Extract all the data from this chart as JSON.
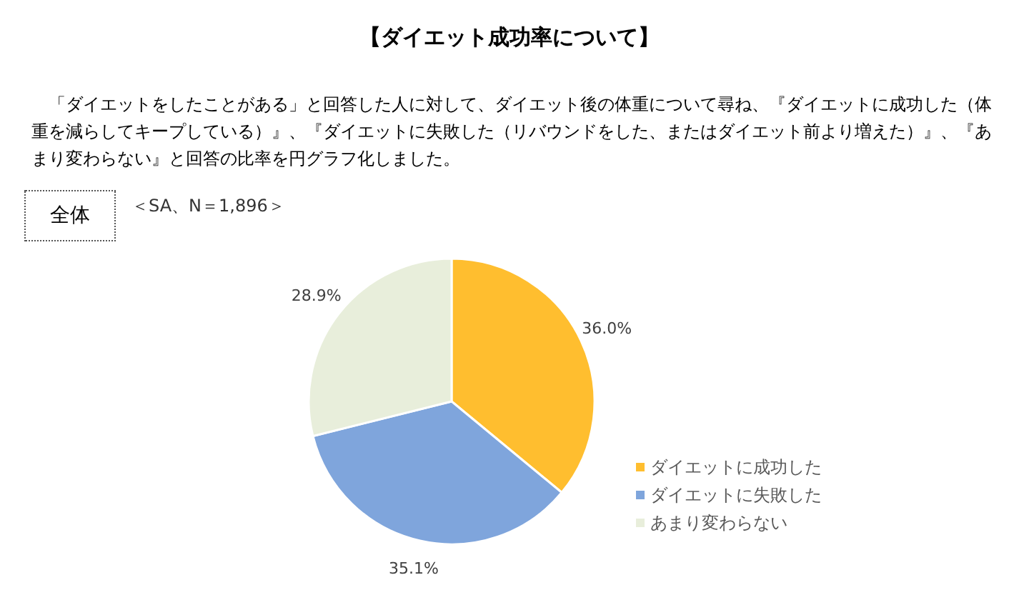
{
  "chart_data": {
    "type": "pie",
    "title": "【ダイエット成功率について】",
    "subtitle": "「ダイエットをしたことがある」と回答した人に対して、ダイエット後の体重について尋ね、『ダイエットに成功した（体重を減らしてキープしている）』、『ダイエットに失敗した（リバウンドをした、またはダイエット前より増えた）』、『あまり変わらない』と回答の比率を円グラフ化しました。",
    "categories": [
      "ダイエットに成功した",
      "ダイエットに失敗した",
      "あまり変わらない"
    ],
    "values": [
      36.0,
      35.1,
      28.9
    ],
    "value_labels": [
      "36.0%",
      "35.1%",
      "28.9%"
    ],
    "colors": [
      "#ffbe2f",
      "#7fa5dc",
      "#e8eedb"
    ],
    "legend": "bottom right",
    "annotations": [
      "全体",
      "＜SA、N＝1,896＞"
    ]
  }
}
